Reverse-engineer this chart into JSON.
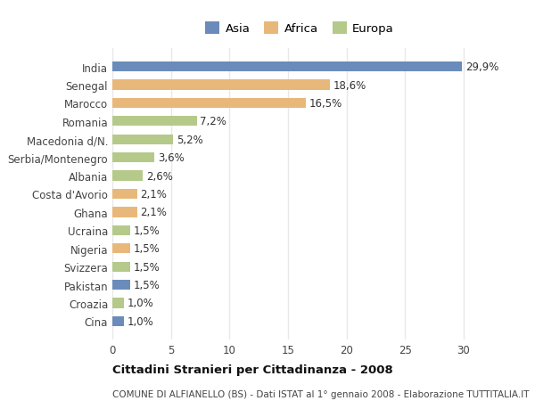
{
  "categories": [
    "India",
    "Senegal",
    "Marocco",
    "Romania",
    "Macedonia d/N.",
    "Serbia/Montenegro",
    "Albania",
    "Costa d'Avorio",
    "Ghana",
    "Ucraina",
    "Nigeria",
    "Svizzera",
    "Pakistan",
    "Croazia",
    "Cina"
  ],
  "values": [
    29.9,
    18.6,
    16.5,
    7.2,
    5.2,
    3.6,
    2.6,
    2.1,
    2.1,
    1.5,
    1.5,
    1.5,
    1.5,
    1.0,
    1.0
  ],
  "labels": [
    "29,9%",
    "18,6%",
    "16,5%",
    "7,2%",
    "5,2%",
    "3,6%",
    "2,6%",
    "2,1%",
    "2,1%",
    "1,5%",
    "1,5%",
    "1,5%",
    "1,5%",
    "1,0%",
    "1,0%"
  ],
  "continents": [
    "Asia",
    "Africa",
    "Africa",
    "Europa",
    "Europa",
    "Europa",
    "Europa",
    "Africa",
    "Africa",
    "Europa",
    "Africa",
    "Europa",
    "Asia",
    "Europa",
    "Asia"
  ],
  "colors": {
    "Asia": "#6b8cba",
    "Africa": "#e8b87a",
    "Europa": "#b5c98a"
  },
  "legend_labels": [
    "Asia",
    "Africa",
    "Europa"
  ],
  "title": "Cittadini Stranieri per Cittadinanza - 2008",
  "subtitle": "COMUNE DI ALFIANELLO (BS) - Dati ISTAT al 1° gennaio 2008 - Elaborazione TUTTITALIA.IT",
  "xlim": [
    0,
    32
  ],
  "xticks": [
    0,
    5,
    10,
    15,
    20,
    25,
    30
  ],
  "bg_color": "#ffffff",
  "plot_bg_color": "#ffffff",
  "grid_color": "#e8e8e8",
  "bar_height": 0.55,
  "label_fontsize": 8.5,
  "ytick_fontsize": 8.5,
  "xtick_fontsize": 8.5,
  "title_fontsize": 9.5,
  "subtitle_fontsize": 7.5,
  "legend_fontsize": 9.5
}
